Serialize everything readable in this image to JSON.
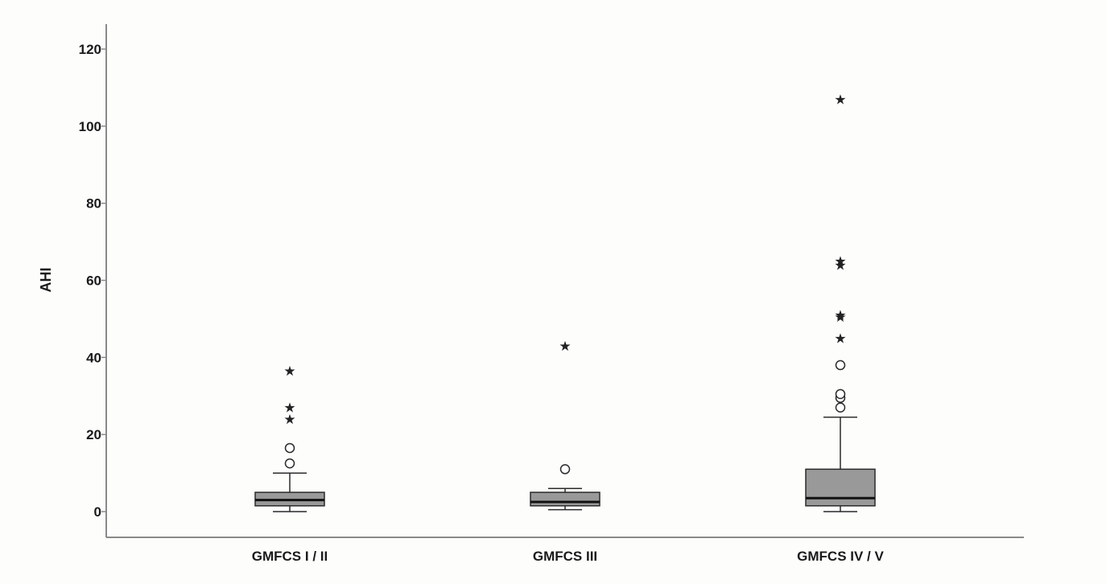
{
  "chart_data": {
    "type": "boxplot",
    "ylabel": "AHI",
    "xlabel": "",
    "ylim": [
      -6,
      125
    ],
    "yticks": [
      0,
      20,
      40,
      60,
      80,
      100,
      120
    ],
    "categories": [
      "GMFCS I / II",
      "GMFCS III",
      "GMFCS IV / V"
    ],
    "boxes": [
      {
        "category": "GMFCS I / II",
        "whisker_low": 0,
        "q1": 1.5,
        "median": 3,
        "q3": 5,
        "whisker_high": 10,
        "outliers": [
          12.5,
          16.5
        ],
        "extremes": [
          24,
          27,
          36.5
        ]
      },
      {
        "category": "GMFCS III",
        "whisker_low": 0.5,
        "q1": 1.5,
        "median": 2.5,
        "q3": 5,
        "whisker_high": 6,
        "outliers": [
          11
        ],
        "extremes": [
          43
        ]
      },
      {
        "category": "GMFCS IV / V",
        "whisker_low": 0,
        "q1": 1.5,
        "median": 3.5,
        "q3": 11,
        "whisker_high": 24.5,
        "outliers": [
          27,
          29.5,
          30.5,
          38
        ],
        "extremes": [
          45,
          50.5,
          51,
          64,
          65,
          107
        ]
      }
    ],
    "box_color": "#999999",
    "grid": false,
    "legend": "none"
  }
}
